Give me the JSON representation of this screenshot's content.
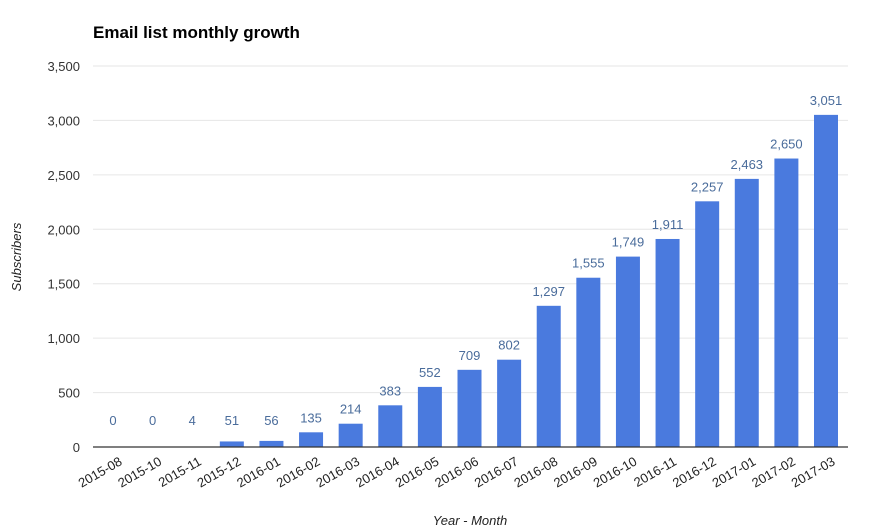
{
  "chart_data": {
    "type": "bar",
    "title": "Email list monthly growth",
    "xlabel": "Year - Month",
    "ylabel": "Subscribers",
    "ylim": [
      0,
      3500
    ],
    "yticks": [
      "0",
      "500",
      "1,000",
      "1,500",
      "2,000",
      "2,500",
      "3,000",
      "3,500"
    ],
    "yticks_values": [
      0,
      500,
      1000,
      1500,
      2000,
      2500,
      3000,
      3500
    ],
    "grid": true,
    "legend": "none",
    "bar_color": "#4a7ade",
    "categories": [
      "2015-08",
      "2015-10",
      "2015-11",
      "2015-12",
      "2016-01",
      "2016-02",
      "2016-03",
      "2016-04",
      "2016-05",
      "2016-06",
      "2016-07",
      "2016-08",
      "2016-09",
      "2016-10",
      "2016-11",
      "2016-12",
      "2017-01",
      "2017-02",
      "2017-03"
    ],
    "values": [
      0,
      0,
      4,
      51,
      56,
      135,
      214,
      383,
      552,
      709,
      802,
      1297,
      1555,
      1749,
      1911,
      2257,
      2463,
      2650,
      3051
    ],
    "data_labels": [
      "0",
      "0",
      "4",
      "51",
      "56",
      "135",
      "214",
      "383",
      "552",
      "709",
      "802",
      "1,297",
      "1,555",
      "1,749",
      "1,911",
      "2,257",
      "2,463",
      "2,650",
      "3,051"
    ]
  }
}
